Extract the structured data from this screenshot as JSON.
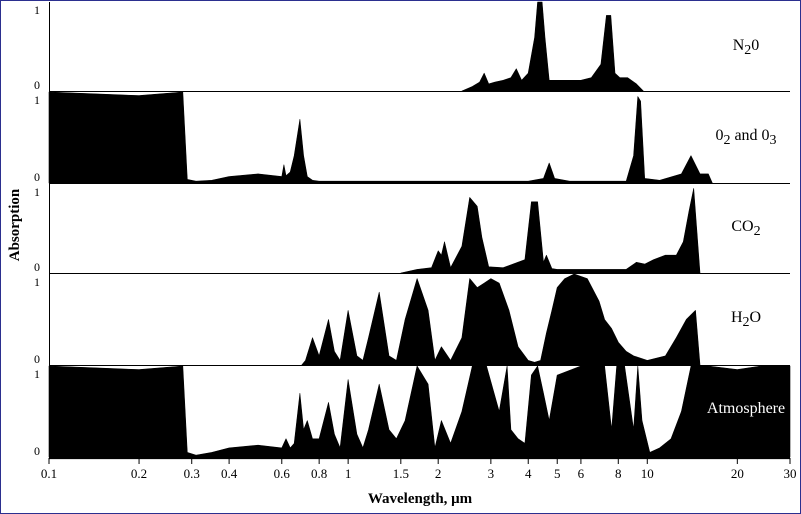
{
  "chart_data": {
    "type": "area",
    "xscale": "log",
    "xlim": [
      0.1,
      30
    ],
    "ylim": [
      0,
      1
    ],
    "xlabel": "Wavelength, μm",
    "ylabel": "Absorption",
    "x_ticks": [
      0.1,
      0.2,
      0.3,
      0.4,
      0.6,
      0.8,
      1,
      1.5,
      2,
      3,
      4,
      5,
      6,
      8,
      10,
      20,
      30
    ],
    "x_tick_labels": [
      "0.1",
      "0.2",
      "0.3",
      "0.4",
      "0.6",
      "0.8",
      "1",
      "1.5",
      "2",
      "3",
      "4",
      "5",
      "6",
      "8",
      "10",
      "20",
      "30"
    ],
    "panels": [
      {
        "name_parts": [
          [
            "N",
            false
          ],
          [
            "2",
            true
          ],
          [
            "0",
            false
          ]
        ],
        "y_ticks": [
          "1",
          "0"
        ],
        "x": [
          2.4,
          2.6,
          2.75,
          2.85,
          2.95,
          3.1,
          3.3,
          3.5,
          3.65,
          3.8,
          4.0,
          4.2,
          4.3,
          4.45,
          4.55,
          4.7,
          5.0,
          5.5,
          6.0,
          6.5,
          7.0,
          7.3,
          7.55,
          7.8,
          8.1,
          8.6,
          9.2,
          9.7
        ],
        "y": [
          0,
          0.05,
          0.1,
          0.2,
          0.08,
          0.1,
          0.12,
          0.15,
          0.25,
          0.12,
          0.2,
          0.6,
          1.0,
          1.0,
          0.6,
          0.12,
          0.12,
          0.12,
          0.12,
          0.15,
          0.3,
          0.85,
          0.85,
          0.2,
          0.15,
          0.15,
          0.08,
          0
        ]
      },
      {
        "name_parts": [
          [
            "0",
            false
          ],
          [
            "2",
            true
          ],
          [
            " and 0",
            false
          ],
          [
            "3",
            true
          ]
        ],
        "y_ticks": [
          "1",
          "0"
        ],
        "x": [
          0.1,
          0.2,
          0.28,
          0.29,
          0.31,
          0.35,
          0.4,
          0.5,
          0.6,
          0.61,
          0.62,
          0.64,
          0.66,
          0.69,
          0.71,
          0.73,
          0.76,
          0.8,
          1.0,
          2.0,
          3.0,
          4.0,
          4.5,
          4.7,
          4.9,
          5.5,
          7.0,
          8.5,
          9.0,
          9.3,
          9.5,
          9.8,
          11.0,
          13.0,
          14.0,
          15.0,
          16.0,
          16.5
        ],
        "y": [
          1,
          0.96,
          1,
          0.04,
          0.02,
          0.03,
          0.07,
          0.1,
          0.07,
          0.2,
          0.08,
          0.12,
          0.3,
          0.7,
          0.3,
          0.07,
          0.03,
          0.02,
          0.02,
          0.02,
          0.02,
          0.02,
          0.05,
          0.22,
          0.05,
          0.02,
          0.02,
          0.02,
          0.3,
          0.95,
          0.9,
          0.05,
          0.03,
          0.1,
          0.3,
          0.1,
          0.1,
          0
        ]
      },
      {
        "name_parts": [
          [
            "CO",
            false
          ],
          [
            "2",
            true
          ]
        ],
        "y_ticks": [
          "1",
          "0"
        ],
        "x": [
          1.5,
          1.7,
          1.9,
          2.0,
          2.05,
          2.1,
          2.2,
          2.4,
          2.55,
          2.7,
          2.8,
          2.95,
          3.3,
          3.9,
          4.1,
          4.3,
          4.5,
          4.6,
          4.8,
          5.0,
          6.0,
          7.5,
          8.5,
          9.2,
          9.8,
          10.5,
          11.5,
          12.5,
          13.2,
          13.8,
          14.3,
          15.0
        ],
        "y": [
          0,
          0.04,
          0.06,
          0.25,
          0.2,
          0.35,
          0.06,
          0.3,
          0.85,
          0.75,
          0.4,
          0.07,
          0.06,
          0.15,
          0.8,
          0.8,
          0.12,
          0.2,
          0.05,
          0.04,
          0.04,
          0.04,
          0.04,
          0.12,
          0.1,
          0.15,
          0.2,
          0.2,
          0.35,
          0.7,
          0.95,
          0
        ]
      },
      {
        "name_parts": [
          [
            "H",
            false
          ],
          [
            "2",
            true
          ],
          [
            "O",
            false
          ]
        ],
        "y_ticks": [
          "1",
          "0"
        ],
        "x": [
          0.7,
          0.72,
          0.76,
          0.8,
          0.86,
          0.9,
          0.94,
          1.0,
          1.07,
          1.12,
          1.17,
          1.27,
          1.37,
          1.45,
          1.55,
          1.7,
          1.85,
          1.95,
          2.05,
          2.2,
          2.4,
          2.55,
          2.7,
          2.85,
          3.0,
          3.2,
          3.45,
          3.7,
          4.0,
          4.2,
          4.4,
          4.6,
          4.8,
          5.0,
          5.3,
          5.7,
          6.3,
          6.9,
          7.2,
          7.6,
          8.0,
          8.5,
          9.0,
          10.0,
          11.5,
          12.5,
          13.5,
          14.5,
          15.0
        ],
        "y": [
          0,
          0.05,
          0.3,
          0.1,
          0.5,
          0.15,
          0.05,
          0.6,
          0.1,
          0.05,
          0.3,
          0.8,
          0.1,
          0.05,
          0.5,
          0.95,
          0.6,
          0.05,
          0.2,
          0.05,
          0.3,
          0.95,
          0.85,
          0.9,
          0.95,
          0.9,
          0.6,
          0.2,
          0.05,
          0.03,
          0.05,
          0.35,
          0.6,
          0.85,
          0.95,
          1.0,
          0.95,
          0.7,
          0.5,
          0.4,
          0.25,
          0.15,
          0.1,
          0.05,
          0.1,
          0.3,
          0.5,
          0.6,
          0
        ]
      },
      {
        "name_parts": [
          [
            "Atmosphere",
            false
          ]
        ],
        "y_ticks": [
          "1",
          "0"
        ],
        "label_inverted": true,
        "x": [
          0.1,
          0.2,
          0.28,
          0.29,
          0.31,
          0.35,
          0.4,
          0.5,
          0.6,
          0.62,
          0.64,
          0.66,
          0.69,
          0.71,
          0.73,
          0.76,
          0.8,
          0.86,
          0.9,
          0.94,
          1.0,
          1.07,
          1.12,
          1.17,
          1.27,
          1.37,
          1.45,
          1.55,
          1.7,
          1.85,
          1.95,
          2.05,
          2.2,
          2.4,
          2.6,
          2.9,
          3.2,
          3.4,
          3.5,
          3.7,
          3.9,
          4.1,
          4.3,
          4.5,
          4.7,
          5.0,
          6.0,
          7.2,
          7.6,
          7.9,
          8.4,
          9.0,
          9.3,
          9.6,
          10.2,
          11.0,
          12.0,
          13.0,
          14.0,
          16.0,
          20.0,
          24.0,
          30.0
        ],
        "y": [
          1,
          0.96,
          1,
          0.05,
          0.02,
          0.05,
          0.1,
          0.13,
          0.1,
          0.2,
          0.1,
          0.15,
          0.7,
          0.3,
          0.4,
          0.2,
          0.2,
          0.6,
          0.25,
          0.1,
          0.85,
          0.25,
          0.1,
          0.3,
          0.8,
          0.3,
          0.2,
          0.4,
          1.0,
          0.8,
          0.1,
          0.4,
          0.15,
          0.5,
          1.0,
          1.0,
          0.5,
          1.0,
          0.3,
          0.2,
          0.15,
          0.9,
          1.0,
          0.7,
          0.4,
          0.9,
          1.0,
          1.0,
          0.3,
          1.0,
          1.0,
          0.3,
          1.0,
          0.4,
          0.05,
          0.1,
          0.2,
          0.5,
          1.0,
          1.0,
          0.96,
          1.0,
          1.0
        ]
      }
    ]
  }
}
